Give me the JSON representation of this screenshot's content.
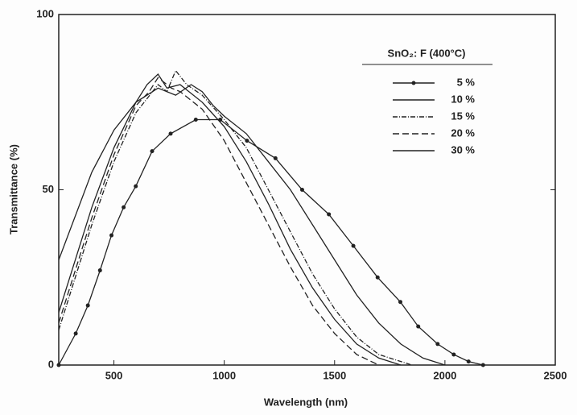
{
  "chart_data": {
    "type": "line",
    "xlabel": "Wavelength (nm)",
    "ylabel": "Transmittance (%)",
    "legend_title": "SnO₂: F (400°C)",
    "legend": "upper right",
    "xlim": [
      250,
      2500
    ],
    "xticks": [
      500,
      1000,
      1500,
      2000,
      2500
    ],
    "ylim": [
      0,
      100
    ],
    "yticks": [
      0,
      50,
      100
    ],
    "series": [
      {
        "name": "5 %",
        "color": "#222222",
        "marker": "circle",
        "dash": "none",
        "x": [
          250,
          327,
          382,
          437,
          489,
          544,
          599,
          673,
          757,
          871,
          982,
          1103,
          1232,
          1353,
          1474,
          1585,
          1695,
          1798,
          1879,
          1967,
          2040,
          2107,
          2173
        ],
        "values": [
          0,
          9,
          17,
          27,
          37,
          45,
          51,
          61,
          66,
          70,
          70,
          64,
          59,
          50,
          43,
          34,
          25,
          18,
          11,
          6,
          3,
          1,
          0
        ]
      },
      {
        "name": "10 %",
        "color": "#222222",
        "marker": "none",
        "dash": "none",
        "x": [
          250,
          400,
          500,
          600,
          650,
          700,
          740,
          800,
          900,
          1000,
          1100,
          1200,
          1300,
          1400,
          1500,
          1600,
          1700,
          1800
        ],
        "values": [
          15,
          45,
          62,
          75,
          80,
          83,
          79,
          80,
          75,
          68,
          58,
          46,
          33,
          22,
          13,
          6,
          2,
          0
        ]
      },
      {
        "name": "15 %",
        "color": "#222222",
        "marker": "none",
        "dash": "6 2 1 2",
        "x": [
          250,
          400,
          500,
          600,
          700,
          740,
          780,
          830,
          900,
          1000,
          1100,
          1200,
          1300,
          1400,
          1500,
          1600,
          1700,
          1850
        ],
        "values": [
          10,
          40,
          58,
          72,
          80,
          78,
          84,
          80,
          77,
          70,
          62,
          50,
          38,
          26,
          16,
          8,
          3,
          0
        ]
      },
      {
        "name": "20 %",
        "color": "#222222",
        "marker": "none",
        "dash": "8 4",
        "x": [
          250,
          400,
          500,
          600,
          660,
          700,
          760,
          800,
          900,
          1000,
          1100,
          1200,
          1300,
          1400,
          1500,
          1600,
          1700
        ],
        "values": [
          12,
          42,
          60,
          74,
          78,
          82,
          79,
          78,
          73,
          64,
          52,
          40,
          28,
          17,
          9,
          3,
          0
        ]
      },
      {
        "name": "30 %",
        "color": "#222222",
        "marker": "none",
        "dash": "none",
        "x": [
          250,
          400,
          500,
          600,
          700,
          780,
          850,
          900,
          950,
          1000,
          1100,
          1200,
          1300,
          1400,
          1500,
          1600,
          1700,
          1800,
          1900,
          2000
        ],
        "values": [
          30,
          55,
          67,
          75,
          79,
          77,
          80,
          78,
          74,
          71,
          66,
          58,
          50,
          40,
          30,
          20,
          12,
          6,
          2,
          0
        ]
      }
    ]
  }
}
